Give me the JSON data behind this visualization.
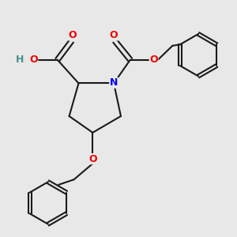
{
  "background_color": "#e8e8e8",
  "bond_color": "#1a1a1a",
  "bond_width": 1.5,
  "N_color": "#0000ee",
  "O_color": "#ee0000",
  "H_color": "#4a9090",
  "figsize": [
    3.0,
    3.0
  ],
  "dpi": 100,
  "xlim": [
    0,
    10
  ],
  "ylim": [
    -5,
    5
  ]
}
